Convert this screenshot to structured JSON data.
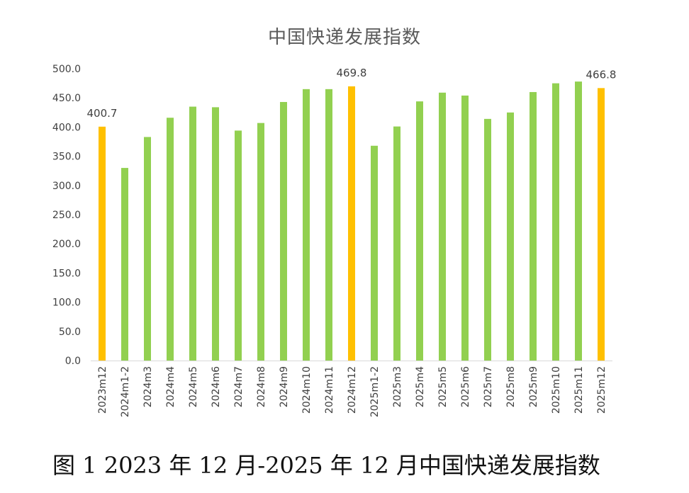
{
  "chart_data": {
    "type": "bar",
    "title": "中国快递发展指数",
    "categories": [
      "2023m12",
      "2024m1-2",
      "2024m3",
      "2024m4",
      "2024m5",
      "2024m6",
      "2024m7",
      "2024m8",
      "2024m9",
      "2024m10",
      "2024m11",
      "2024m12",
      "2025m1-2",
      "2025m3",
      "2025m4",
      "2025m5",
      "2025m6",
      "2025m7",
      "2025m8",
      "2025m9",
      "2025m10",
      "2025m11",
      "2025m12"
    ],
    "values": [
      400.7,
      330.0,
      383.0,
      416.0,
      435.0,
      434.0,
      394.0,
      407.0,
      443.0,
      465.0,
      465.0,
      469.8,
      368.0,
      401.0,
      444.0,
      459.0,
      454.0,
      414.0,
      425.0,
      460.0,
      475.0,
      478.0,
      466.8
    ],
    "highlighted": [
      "2023m12",
      "2024m12",
      "2025m12"
    ],
    "data_labels": [
      {
        "category": "2023m12",
        "text": "400.7"
      },
      {
        "category": "2024m12",
        "text": "469.8"
      },
      {
        "category": "2025m12",
        "text": "466.8"
      }
    ],
    "ylim": [
      0,
      500
    ],
    "yticks": [
      "0.0",
      "50.0",
      "100.0",
      "150.0",
      "200.0",
      "250.0",
      "300.0",
      "350.0",
      "400.0",
      "450.0",
      "500.0"
    ],
    "xlabel": "",
    "ylabel": "",
    "grid": false,
    "legend": "none",
    "colors": {
      "bar": "#92D050",
      "highlight": "#FFC000",
      "axis": "#D9D9D9",
      "text": "#404040"
    }
  },
  "caption": "图 1 2023 年 12 月-2025 年 12 月中国快递发展指数"
}
